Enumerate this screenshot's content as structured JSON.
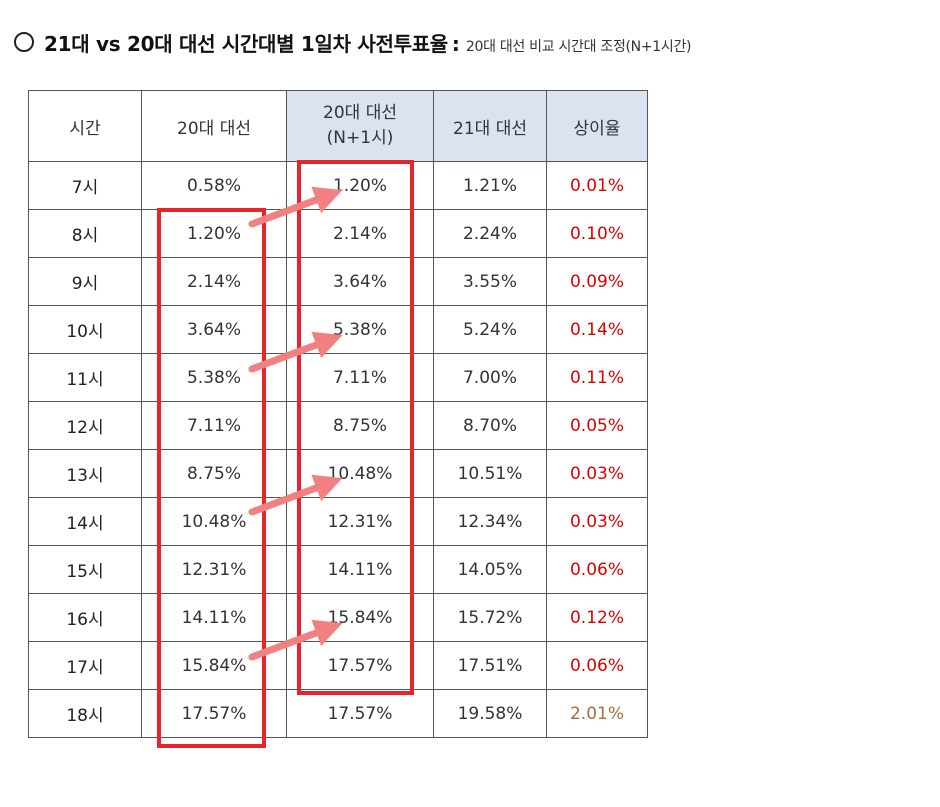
{
  "title": {
    "main": "21대 vs 20대 대선 시간대별 1일차 사전투표율",
    "separator": ":",
    "sub": "20대 대선 비교 시간대 조정(N+1시간)"
  },
  "table": {
    "headers": {
      "time": "시간",
      "e20": "20대 대선",
      "e20_shift_line1": "20대 대선",
      "e20_shift_line2": "(N+1시)",
      "e21": "21대 대선",
      "diff": "상이율"
    },
    "rows": [
      {
        "time": "7시",
        "e20": "0.58%",
        "e20_shift": "1.20%",
        "e21": "1.21%",
        "diff": "0.01%"
      },
      {
        "time": "8시",
        "e20": "1.20%",
        "e20_shift": "2.14%",
        "e21": "2.24%",
        "diff": "0.10%"
      },
      {
        "time": "9시",
        "e20": "2.14%",
        "e20_shift": "3.64%",
        "e21": "3.55%",
        "diff": "0.09%"
      },
      {
        "time": "10시",
        "e20": "3.64%",
        "e20_shift": "5.38%",
        "e21": "5.24%",
        "diff": "0.14%"
      },
      {
        "time": "11시",
        "e20": "5.38%",
        "e20_shift": "7.11%",
        "e21": "7.00%",
        "diff": "0.11%"
      },
      {
        "time": "12시",
        "e20": "7.11%",
        "e20_shift": "8.75%",
        "e21": "8.70%",
        "diff": "0.05%"
      },
      {
        "time": "13시",
        "e20": "8.75%",
        "e20_shift": "10.48%",
        "e21": "10.51%",
        "diff": "0.03%"
      },
      {
        "time": "14시",
        "e20": "10.48%",
        "e20_shift": "12.31%",
        "e21": "12.34%",
        "diff": "0.03%"
      },
      {
        "time": "15시",
        "e20": "12.31%",
        "e20_shift": "14.11%",
        "e21": "14.05%",
        "diff": "0.06%"
      },
      {
        "time": "16시",
        "e20": "14.11%",
        "e20_shift": "15.84%",
        "e21": "15.72%",
        "diff": "0.12%"
      },
      {
        "time": "17시",
        "e20": "15.84%",
        "e20_shift": "17.57%",
        "e21": "17.51%",
        "diff": "0.06%"
      },
      {
        "time": "18시",
        "e20": "17.57%",
        "e20_shift": "17.57%",
        "e21": "19.58%",
        "diff": "2.01%"
      }
    ]
  },
  "colors": {
    "highlight_box": "#e8232a",
    "arrow": "#f28080",
    "diff_text": "#e00000",
    "diff_text_last": "#a0723a",
    "header_highlight": "#dce3f0"
  }
}
